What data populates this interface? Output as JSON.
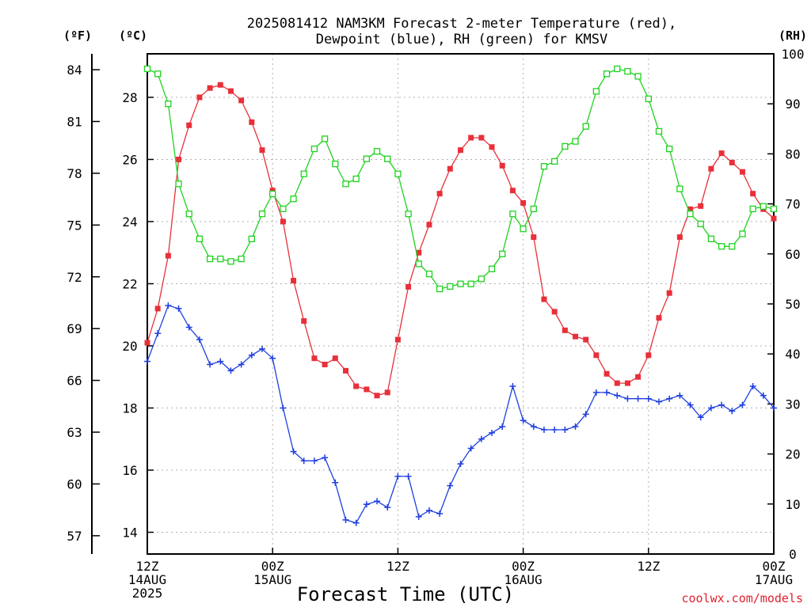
{
  "title_line1": "2025081412 NAM3KM Forecast 2-meter Temperature (red),",
  "title_line2": "Dewpoint (blue), RH (green) for KMSV",
  "units": {
    "left_f": "(ºF)",
    "left_c": "(ºC)",
    "right": "(RH)"
  },
  "xlabel": "Forecast Time (UTC)",
  "credit": "coolwx.com/models",
  "x_ticks": [
    {
      "hour": 0,
      "lines": [
        "12Z",
        "14AUG",
        "2025"
      ]
    },
    {
      "hour": 12,
      "lines": [
        "00Z",
        "15AUG"
      ]
    },
    {
      "hour": 24,
      "lines": [
        "12Z"
      ]
    },
    {
      "hour": 36,
      "lines": [
        "00Z",
        "16AUG"
      ]
    },
    {
      "hour": 48,
      "lines": [
        "12Z"
      ]
    },
    {
      "hour": 60,
      "lines": [
        "00Z",
        "17AUG"
      ]
    }
  ],
  "colors": {
    "temperature": "#e8303a",
    "dewpoint": "#1f3fe0",
    "rh": "#1fd21f",
    "grid": "#b0b0b0",
    "credit": "#e0202e"
  },
  "chart_data": {
    "type": "line",
    "title": "2025081412 NAM3KM Forecast 2-meter Temperature (red), Dewpoint (blue), RH (green) for KMSV",
    "xlabel": "Forecast Time (UTC)",
    "x_unit": "forecast hour from 2025-08-14 12Z",
    "x": [
      0,
      1,
      2,
      3,
      4,
      5,
      6,
      7,
      8,
      9,
      10,
      11,
      12,
      13,
      14,
      15,
      16,
      17,
      18,
      19,
      20,
      21,
      22,
      23,
      24,
      25,
      26,
      27,
      28,
      29,
      30,
      31,
      32,
      33,
      34,
      35,
      36,
      37,
      38,
      39,
      40,
      41,
      42,
      43,
      44,
      45,
      46,
      47,
      48,
      49,
      50,
      51,
      52,
      53,
      54,
      55,
      56,
      57,
      58,
      59,
      60
    ],
    "xlim": [
      0,
      60
    ],
    "left_axis_c": {
      "label": "(ºC)",
      "ylim": [
        13.3,
        29.4
      ],
      "ticks": [
        14,
        16,
        18,
        20,
        22,
        24,
        26,
        28
      ]
    },
    "left_axis_f": {
      "label": "(ºF)",
      "ticks": [
        57,
        60,
        63,
        66,
        69,
        72,
        75,
        78,
        81,
        84
      ]
    },
    "right_axis": {
      "label": "(RH)",
      "ylim": [
        0,
        100
      ],
      "ticks": [
        0,
        10,
        20,
        30,
        40,
        50,
        60,
        70,
        80,
        90,
        100
      ]
    },
    "grid": true,
    "series": [
      {
        "axis": "celsius",
        "marker": "filled-square",
        "values": [
          20.1,
          21.2,
          22.9,
          26.0,
          27.1,
          28.0,
          28.3,
          28.4,
          28.2,
          27.9,
          27.2,
          26.3,
          25.0,
          24.0,
          22.1,
          20.8,
          19.6,
          19.4,
          19.6,
          19.2,
          18.7,
          18.6,
          18.4,
          18.5,
          20.2,
          21.9,
          23.0,
          23.9,
          24.9,
          25.7,
          26.3,
          26.7,
          26.7,
          26.4,
          25.8,
          25.0,
          24.6,
          23.5,
          21.5,
          21.1,
          20.5,
          20.3,
          20.2,
          19.7,
          19.1,
          18.8,
          18.8,
          19.0,
          19.7,
          20.9,
          21.7,
          23.5,
          24.4,
          24.5,
          25.7,
          26.2,
          25.9,
          25.6,
          24.9,
          24.4,
          24.1
        ]
      },
      {
        "axis": "celsius",
        "marker": "plus",
        "values": [
          19.5,
          20.4,
          21.3,
          21.2,
          20.6,
          20.2,
          19.4,
          19.5,
          19.2,
          19.4,
          19.7,
          19.9,
          19.6,
          18.0,
          16.6,
          16.3,
          16.3,
          16.4,
          15.6,
          14.4,
          14.3,
          14.9,
          15.0,
          14.8,
          15.8,
          15.8,
          14.5,
          14.7,
          14.6,
          15.5,
          16.2,
          16.7,
          17.0,
          17.2,
          17.4,
          18.7,
          17.6,
          17.4,
          17.3,
          17.3,
          17.3,
          17.4,
          17.8,
          18.5,
          18.5,
          18.4,
          18.3,
          18.3,
          18.3,
          18.2,
          18.3,
          18.4,
          18.1,
          17.7,
          18.0,
          18.1,
          17.9,
          18.1,
          18.7,
          18.4,
          18.0
        ]
      },
      {
        "axis": "rh",
        "marker": "open-square",
        "values": [
          97,
          96,
          90,
          74,
          68,
          63,
          59,
          59,
          58.5,
          59,
          63,
          68,
          72,
          69,
          71,
          76,
          81,
          83,
          78,
          74,
          75,
          79,
          80.5,
          79,
          76,
          68,
          58,
          56,
          53,
          53.5,
          54,
          54,
          55,
          57,
          60,
          68,
          65,
          69,
          77.5,
          78.5,
          81.5,
          82.5,
          85.5,
          92.5,
          96,
          97,
          96.5,
          95.5,
          91,
          84.5,
          81,
          73,
          68,
          66,
          63,
          61.5,
          61.5,
          64,
          69,
          69.5,
          69
        ]
      }
    ]
  }
}
